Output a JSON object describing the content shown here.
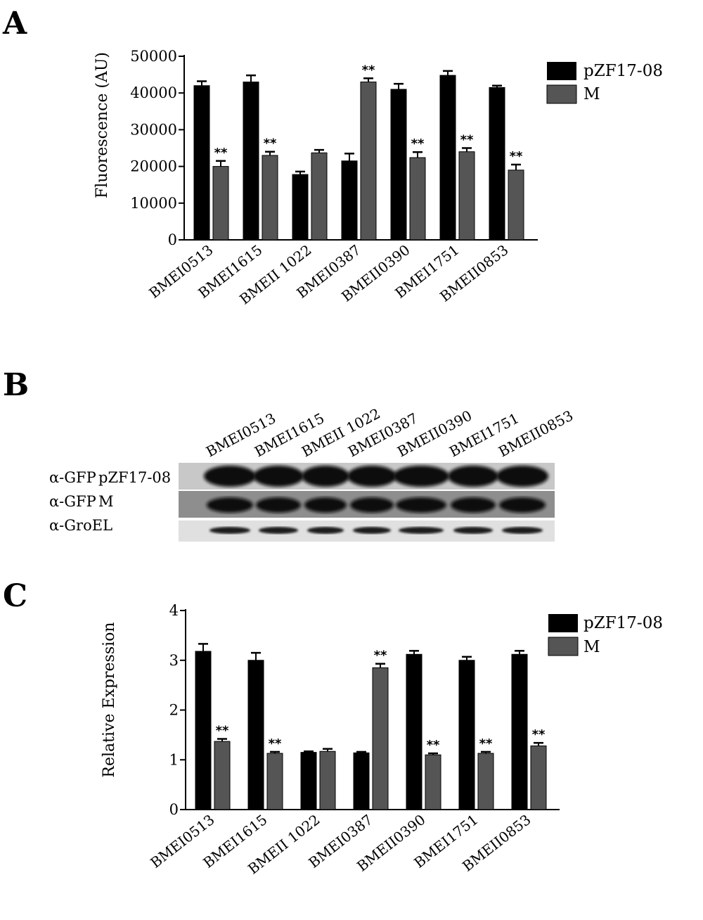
{
  "panels": {
    "a": "A",
    "b": "B",
    "c": "C"
  },
  "colors": {
    "pZF17-08": "#000000",
    "M": "#555555",
    "axis": "#000000"
  },
  "chart_data": [
    {
      "id": "chart-a",
      "type": "bar",
      "title": "",
      "xlabel": "",
      "ylabel": "Fluorescence (AU)",
      "ylim": [
        0,
        50000
      ],
      "yticks": [
        0,
        10000,
        20000,
        30000,
        40000,
        50000
      ],
      "legend_position": "top-right",
      "categories": [
        "BMEI0513",
        "BMEI1615",
        "BMEII 1022",
        "BMEI0387",
        "BMEII0390",
        "BMEI1751",
        "BMEII0853"
      ],
      "series": [
        {
          "name": "pZF17-08",
          "values": [
            42000,
            43000,
            17800,
            21500,
            41000,
            44800,
            41500
          ],
          "errors": [
            1200,
            1800,
            800,
            2000,
            1500,
            1200,
            500
          ]
        },
        {
          "name": "M",
          "values": [
            20000,
            23000,
            23700,
            43000,
            22400,
            24000,
            19000
          ],
          "errors": [
            1500,
            1000,
            800,
            1000,
            1500,
            1000,
            1500
          ]
        }
      ],
      "annotations": [
        {
          "category": "BMEI0513",
          "series": "M",
          "text": "**"
        },
        {
          "category": "BMEI1615",
          "series": "M",
          "text": "**"
        },
        {
          "category": "BMEI0387",
          "series": "M",
          "text": "**"
        },
        {
          "category": "BMEII0390",
          "series": "M",
          "text": "**"
        },
        {
          "category": "BMEI1751",
          "series": "M",
          "text": "**"
        },
        {
          "category": "BMEII0853",
          "series": "M",
          "text": "**"
        }
      ]
    },
    {
      "id": "chart-c",
      "type": "bar",
      "title": "",
      "xlabel": "",
      "ylabel": "Relative Expression",
      "ylim": [
        0,
        4
      ],
      "yticks": [
        0,
        1,
        2,
        3,
        4
      ],
      "legend_position": "top-right",
      "categories": [
        "BMEI0513",
        "BMEI1615",
        "BMEII 1022",
        "BMEI0387",
        "BMEII0390",
        "BMEI1751",
        "BMEII0853"
      ],
      "series": [
        {
          "name": "pZF17-08",
          "values": [
            3.18,
            3.0,
            1.15,
            1.14,
            3.12,
            3.0,
            3.12
          ],
          "errors": [
            0.15,
            0.15,
            0.02,
            0.02,
            0.07,
            0.07,
            0.07
          ]
        },
        {
          "name": "M",
          "values": [
            1.37,
            1.13,
            1.17,
            2.85,
            1.1,
            1.13,
            1.28
          ],
          "errors": [
            0.05,
            0.03,
            0.05,
            0.08,
            0.03,
            0.03,
            0.06
          ]
        }
      ],
      "annotations": [
        {
          "category": "BMEI0513",
          "series": "M",
          "text": "**"
        },
        {
          "category": "BMEI1615",
          "series": "M",
          "text": "**"
        },
        {
          "category": "BMEI0387",
          "series": "M",
          "text": "**"
        },
        {
          "category": "BMEII0390",
          "series": "M",
          "text": "**"
        },
        {
          "category": "BMEI1751",
          "series": "M",
          "text": "**"
        },
        {
          "category": "BMEII0853",
          "series": "M",
          "text": "**"
        }
      ]
    }
  ],
  "blot": {
    "lanes": [
      "BMEI0513",
      "BMEI1615",
      "BMEII 1022",
      "BMEI0387",
      "BMEII0390",
      "BMEI1751",
      "BMEII0853"
    ],
    "rows": [
      {
        "antibody": "α-GFP",
        "sample": "pZF17-08"
      },
      {
        "antibody": "α-GFP",
        "sample": "M"
      },
      {
        "antibody": "α-GroEL",
        "sample": ""
      }
    ]
  }
}
